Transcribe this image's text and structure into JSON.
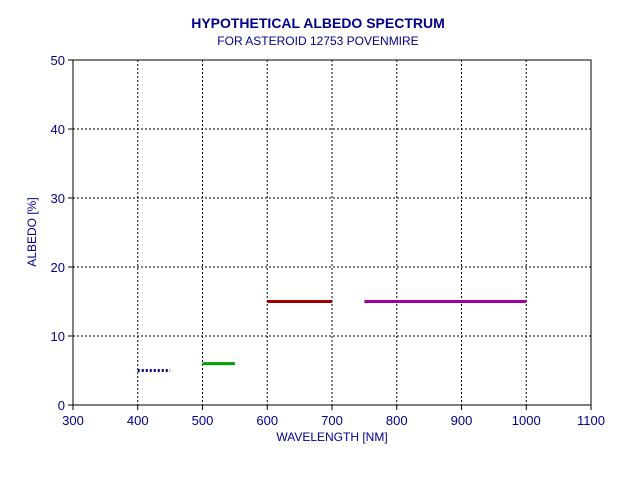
{
  "chart_data": {
    "type": "line",
    "title": "HYPOTHETICAL ALBEDO SPECTRUM",
    "subtitle": "FOR ASTEROID 12753 POVENMIRE",
    "xlabel": "WAVELENGTH [NM]",
    "ylabel": "ALBEDO [%]",
    "xlim": [
      300,
      1100
    ],
    "ylim": [
      0,
      50
    ],
    "xticks": [
      300,
      400,
      500,
      600,
      700,
      800,
      900,
      1000,
      1100
    ],
    "yticks": [
      0,
      10,
      20,
      30,
      40,
      50
    ],
    "grid": true,
    "series": [
      {
        "x": [
          400,
          450
        ],
        "y": [
          5,
          5
        ],
        "color": "#00008b",
        "style": "dotted"
      },
      {
        "x": [
          500,
          550
        ],
        "y": [
          6,
          6
        ],
        "color": "#00a000",
        "style": "solid"
      },
      {
        "x": [
          600,
          700
        ],
        "y": [
          15,
          15
        ],
        "color": "#a00000",
        "style": "solid"
      },
      {
        "x": [
          750,
          1000
        ],
        "y": [
          15,
          15
        ],
        "color": "#a000a0",
        "style": "solid"
      }
    ],
    "colors": {
      "text": "#00008b",
      "axis": "#000000",
      "grid": "#000000"
    }
  }
}
